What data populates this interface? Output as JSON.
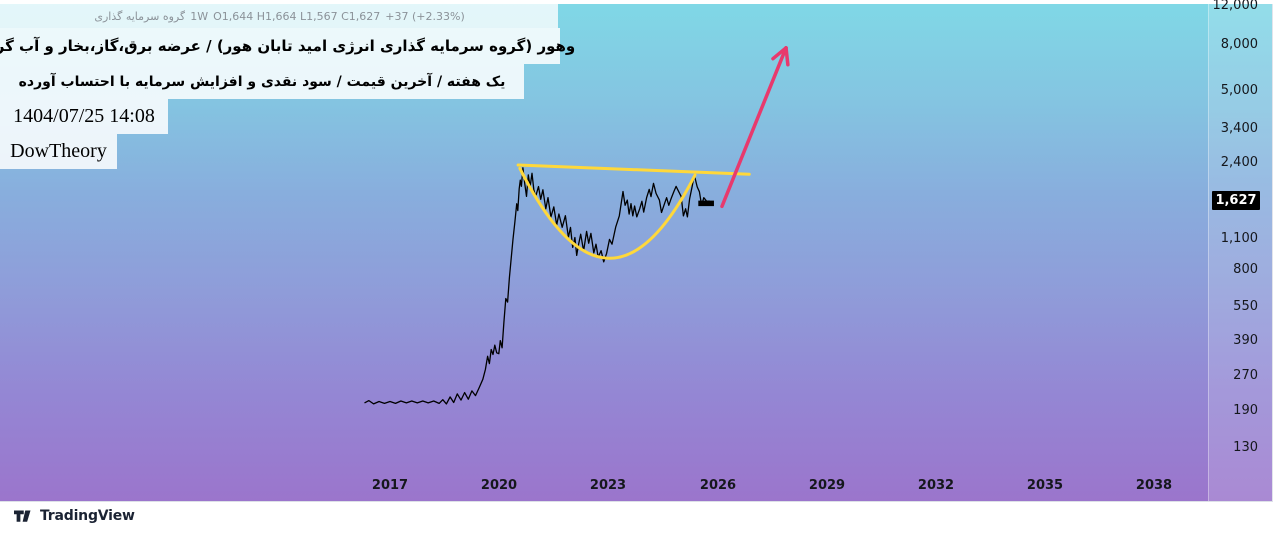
{
  "header": {
    "legend": {
      "symbol_name": "گروه سرمایه گذاری انرژی امید تابان هور",
      "interval": "1W",
      "ohlc": "O1,644 H1,664 L1,567 C1,627",
      "change": "+37 (+2.33%)"
    },
    "title_line1": "وهور (گروه سرمایه گذاری انرژی امید تابان هور) / عرضه برق،گاز،بخار و آب گرم",
    "title_line2": "یک هفته / آخرین قیمت / سود نقدی و افزایش سرمایه با احتساب آورده",
    "datetime": "1404/07/25 14:08",
    "watermark": "DowTheory"
  },
  "footer": {
    "logo_text": "TradingView"
  },
  "chart_data": {
    "type": "line",
    "title": "وهور (گروه سرمایه گذاری انرژی امید تابان هور)",
    "x_axis": {
      "label": "year",
      "ticks": [
        2017,
        2020,
        2023,
        2026,
        2029,
        2032,
        2035,
        2038
      ]
    },
    "y_axis": {
      "scale": "log",
      "ticks": [
        {
          "value": 12000,
          "label": "12,000"
        },
        {
          "value": 8000,
          "label": "8,000"
        },
        {
          "value": 5000,
          "label": "5,000"
        },
        {
          "value": 3400,
          "label": "3,400"
        },
        {
          "value": 2400,
          "label": "2,400"
        },
        {
          "value": 1100,
          "label": "1,100"
        },
        {
          "value": 800,
          "label": "800"
        },
        {
          "value": 550,
          "label": "550"
        },
        {
          "value": 390,
          "label": "390"
        },
        {
          "value": 270,
          "label": "270"
        },
        {
          "value": 190,
          "label": "190"
        },
        {
          "value": 130,
          "label": "130"
        }
      ],
      "last_price_value": 1627,
      "last_price_label": "1,627"
    },
    "series": [
      [
        2016.3,
        206
      ],
      [
        2016.42,
        211
      ],
      [
        2016.55,
        204
      ],
      [
        2016.7,
        209
      ],
      [
        2016.85,
        205
      ],
      [
        2017.0,
        209
      ],
      [
        2017.15,
        205
      ],
      [
        2017.3,
        210
      ],
      [
        2017.45,
        206
      ],
      [
        2017.6,
        210
      ],
      [
        2017.75,
        206
      ],
      [
        2017.9,
        210
      ],
      [
        2018.05,
        206
      ],
      [
        2018.2,
        210
      ],
      [
        2018.35,
        205
      ],
      [
        2018.45,
        213
      ],
      [
        2018.55,
        204
      ],
      [
        2018.65,
        219
      ],
      [
        2018.75,
        207
      ],
      [
        2018.85,
        226
      ],
      [
        2018.95,
        212
      ],
      [
        2019.05,
        229
      ],
      [
        2019.15,
        214
      ],
      [
        2019.25,
        233
      ],
      [
        2019.35,
        222
      ],
      [
        2019.45,
        241
      ],
      [
        2019.55,
        262
      ],
      [
        2019.62,
        290
      ],
      [
        2019.68,
        332
      ],
      [
        2019.73,
        308
      ],
      [
        2019.78,
        356
      ],
      [
        2019.83,
        338
      ],
      [
        2019.88,
        372
      ],
      [
        2019.93,
        344
      ],
      [
        2019.99,
        341
      ],
      [
        2020.03,
        390
      ],
      [
        2020.08,
        362
      ],
      [
        2020.13,
        470
      ],
      [
        2020.18,
        600
      ],
      [
        2020.23,
        578
      ],
      [
        2020.28,
        742
      ],
      [
        2020.33,
        905
      ],
      [
        2020.38,
        1100
      ],
      [
        2020.43,
        1315
      ],
      [
        2020.48,
        1580
      ],
      [
        2020.51,
        1475
      ],
      [
        2020.55,
        1845
      ],
      [
        2020.58,
        2015
      ],
      [
        2020.61,
        1890
      ],
      [
        2020.65,
        2285
      ],
      [
        2020.7,
        1950
      ],
      [
        2020.75,
        1705
      ],
      [
        2020.8,
        2125
      ],
      [
        2020.85,
        1878
      ],
      [
        2020.9,
        2160
      ],
      [
        2020.95,
        1830
      ],
      [
        2021.0,
        1700
      ],
      [
        2021.08,
        1885
      ],
      [
        2021.14,
        1655
      ],
      [
        2021.2,
        1825
      ],
      [
        2021.28,
        1502
      ],
      [
        2021.34,
        1685
      ],
      [
        2021.42,
        1382
      ],
      [
        2021.5,
        1532
      ],
      [
        2021.58,
        1272
      ],
      [
        2021.64,
        1424
      ],
      [
        2021.73,
        1243
      ],
      [
        2021.82,
        1400
      ],
      [
        2021.9,
        1122
      ],
      [
        2021.96,
        1242
      ],
      [
        2022.02,
        1012
      ],
      [
        2022.08,
        1120
      ],
      [
        2022.13,
        932
      ],
      [
        2022.18,
        1046
      ],
      [
        2022.24,
        1158
      ],
      [
        2022.32,
        976
      ],
      [
        2022.4,
        1192
      ],
      [
        2022.46,
        1056
      ],
      [
        2022.52,
        1168
      ],
      [
        2022.6,
        956
      ],
      [
        2022.66,
        1046
      ],
      [
        2022.72,
        916
      ],
      [
        2022.8,
        978
      ],
      [
        2022.87,
        872
      ],
      [
        2022.95,
        952
      ],
      [
        2023.03,
        1098
      ],
      [
        2023.1,
        1046
      ],
      [
        2023.2,
        1246
      ],
      [
        2023.3,
        1396
      ],
      [
        2023.4,
        1792
      ],
      [
        2023.46,
        1556
      ],
      [
        2023.52,
        1642
      ],
      [
        2023.57,
        1422
      ],
      [
        2023.62,
        1582
      ],
      [
        2023.67,
        1396
      ],
      [
        2023.72,
        1546
      ],
      [
        2023.78,
        1382
      ],
      [
        2023.86,
        1502
      ],
      [
        2023.92,
        1622
      ],
      [
        2023.97,
        1452
      ],
      [
        2024.05,
        1682
      ],
      [
        2024.12,
        1832
      ],
      [
        2024.17,
        1702
      ],
      [
        2024.24,
        1948
      ],
      [
        2024.31,
        1756
      ],
      [
        2024.4,
        1642
      ],
      [
        2024.46,
        1446
      ],
      [
        2024.54,
        1582
      ],
      [
        2024.6,
        1682
      ],
      [
        2024.66,
        1556
      ],
      [
        2024.72,
        1662
      ],
      [
        2024.8,
        1792
      ],
      [
        2024.86,
        1888
      ],
      [
        2024.92,
        1806
      ],
      [
        2025.0,
        1702
      ],
      [
        2025.06,
        1396
      ],
      [
        2025.12,
        1502
      ],
      [
        2025.17,
        1382
      ],
      [
        2025.23,
        1662
      ],
      [
        2025.3,
        1882
      ],
      [
        2025.36,
        2122
      ],
      [
        2025.44,
        1880
      ],
      [
        2025.5,
        1790
      ],
      [
        2025.56,
        1556
      ],
      [
        2025.62,
        1682
      ],
      [
        2025.7,
        1622
      ],
      [
        2025.78,
        1627
      ]
    ],
    "annotations": {
      "trendline": {
        "x1": 2020.52,
        "p1": 2350,
        "x2": 2026.87,
        "p2": 2140
      },
      "cup_arc": {
        "x1": 2020.57,
        "p1": 2270,
        "cx": 2023.0,
        "cp": 374,
        "x2": 2025.38,
        "p2": 2120
      },
      "arrow": {
        "x1": 2026.12,
        "p1": 1540,
        "x2": 2027.88,
        "p2": 7800
      },
      "last_dash": {
        "x1": 2025.47,
        "x2": 2025.9,
        "p": 1588
      }
    },
    "colors": {
      "price_line": "#000000",
      "annotation_yellow": "#ffd83a",
      "arrow_pink": "#e8396d",
      "badge_bg": "#000000",
      "badge_text": "#ffffff"
    }
  }
}
